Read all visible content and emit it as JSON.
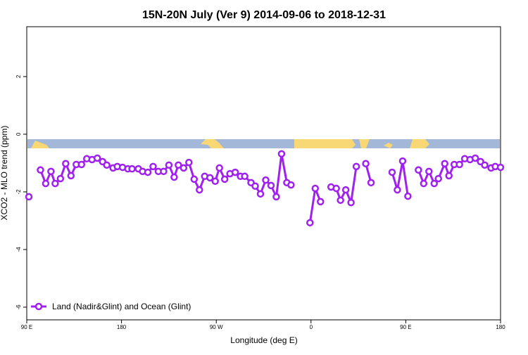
{
  "chart_data": {
    "type": "line",
    "title": "15N-20N July (Ver 9)   2014-09-06 to 2018-12-31",
    "x_label": "Longitude (deg E)",
    "y_label": "XCO2 - MLO trend (ppm)",
    "xlim": [
      90,
      540
    ],
    "ylim": [
      -6.44,
      3.73
    ],
    "xticks": [
      {
        "value": 90,
        "label": "90 E"
      },
      180,
      {
        "value": 270,
        "label": "90 W"
      },
      {
        "value": 360,
        "label": "0"
      },
      {
        "value": 450,
        "label": "90 E"
      },
      {
        "value": 540,
        "label": "180"
      }
    ],
    "yticks": [
      -6,
      -4,
      -2,
      0,
      2
    ],
    "legend": "bottom-left",
    "x": [
      92,
      null,
      103,
      108,
      113,
      117,
      122,
      127,
      132,
      137,
      142,
      147,
      152,
      157,
      162,
      166,
      172,
      176,
      181,
      186,
      190,
      196,
      200,
      205,
      210,
      215,
      220,
      225,
      230,
      234,
      239,
      244,
      249,
      254,
      259,
      264,
      269,
      273,
      278,
      283,
      288,
      293,
      297,
      303,
      307,
      312,
      317,
      322,
      327,
      332,
      337,
      341,
      null,
      359,
      364,
      369,
      null,
      379,
      384,
      388,
      393,
      398,
      403,
      null,
      412,
      417,
      null,
      437,
      442,
      447,
      452,
      null,
      462,
      467,
      472,
      477,
      481,
      487,
      491,
      496,
      501,
      506,
      511,
      516,
      521,
      525,
      531,
      535,
      540
    ],
    "series": [
      {
        "name": "Land (Nadir&Glint) and Ocean (Glint)",
        "color": "#a020f0",
        "values": [
          -2.17,
          null,
          -1.24,
          -1.71,
          -1.29,
          -1.71,
          -1.54,
          -1.02,
          -1.44,
          -1.05,
          -1.05,
          -0.85,
          -0.88,
          -0.83,
          -0.95,
          -1.07,
          -1.17,
          -1.12,
          -1.15,
          -1.2,
          -1.2,
          -1.2,
          -1.29,
          -1.32,
          -1.12,
          -1.29,
          -1.29,
          -1.07,
          -1.49,
          -1.07,
          -1.17,
          -0.98,
          -1.56,
          -1.93,
          -1.46,
          -1.51,
          -1.63,
          -1.17,
          -1.56,
          -1.37,
          -1.32,
          -1.46,
          -1.46,
          -1.68,
          -1.8,
          -2.07,
          -1.59,
          -1.78,
          -2.17,
          -0.68,
          -1.68,
          -1.76,
          null,
          -3.07,
          -1.88,
          -2.34,
          null,
          -1.83,
          -1.88,
          -2.29,
          -1.93,
          -2.37,
          -1.12,
          null,
          -1.02,
          -1.68,
          null,
          -1.32,
          -1.93,
          -0.93,
          -2.15,
          null,
          -1.24,
          -1.71,
          -1.29,
          -1.71,
          -1.54,
          -1.02,
          -1.44,
          -1.05,
          -1.05,
          -0.85,
          -0.88,
          -0.83,
          -0.95,
          -1.07,
          -1.17,
          -1.12,
          -1.15
        ]
      }
    ]
  }
}
